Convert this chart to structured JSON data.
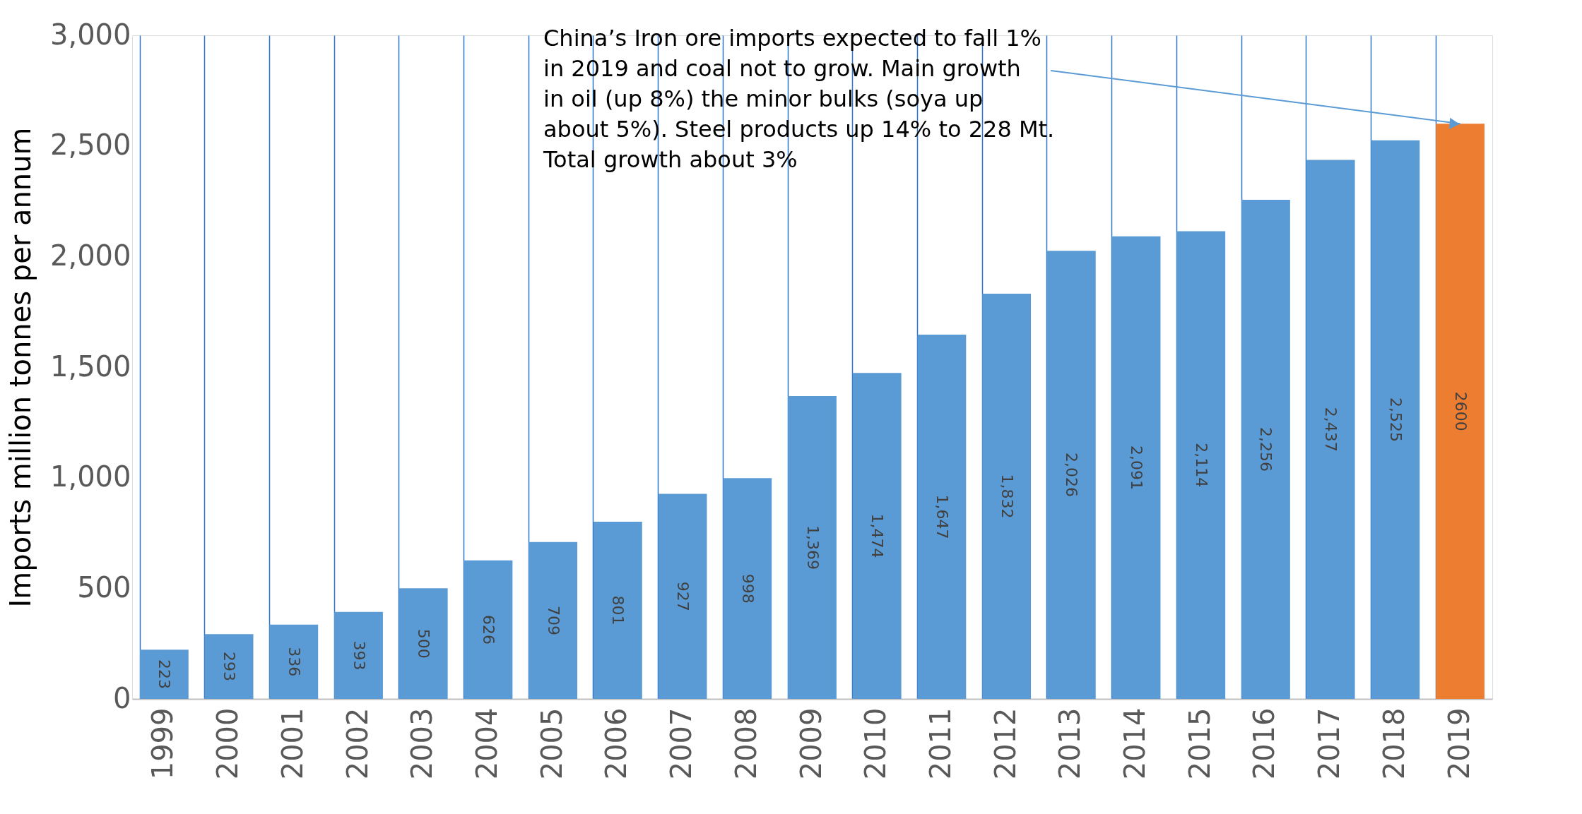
{
  "chart_data": {
    "type": "bar",
    "ylabel": "Imports million tonnes per annum",
    "categories": [
      "1999",
      "2000",
      "2001",
      "2002",
      "2003",
      "2004",
      "2005",
      "2006",
      "2007",
      "2008",
      "2009",
      "2010",
      "2011",
      "2012",
      "2013",
      "2014",
      "2015",
      "2016",
      "2017",
      "2018",
      "2019"
    ],
    "values": [
      223,
      293,
      336,
      393,
      500,
      626,
      709,
      801,
      927,
      998,
      1369,
      1474,
      1647,
      1832,
      2026,
      2091,
      2114,
      2256,
      2437,
      2525,
      2600
    ],
    "value_labels": [
      "223",
      "293",
      "336",
      "393",
      "500",
      "626",
      "709",
      "801",
      "927",
      "998",
      "1,369",
      "1,474",
      "1,647",
      "1,832",
      "2,026",
      "2,091",
      "2,114",
      "2,256",
      "2,437",
      "2,525",
      "2600"
    ],
    "colors": [
      "#5b9bd5",
      "#5b9bd5",
      "#5b9bd5",
      "#5b9bd5",
      "#5b9bd5",
      "#5b9bd5",
      "#5b9bd5",
      "#5b9bd5",
      "#5b9bd5",
      "#5b9bd5",
      "#5b9bd5",
      "#5b9bd5",
      "#5b9bd5",
      "#5b9bd5",
      "#5b9bd5",
      "#5b9bd5",
      "#5b9bd5",
      "#5b9bd5",
      "#5b9bd5",
      "#5b9bd5",
      "#ed7d31"
    ],
    "ylim": [
      0,
      3000
    ],
    "yticks": [
      {
        "value": 0,
        "label": "0"
      },
      {
        "value": 500,
        "label": "500"
      },
      {
        "value": 1000,
        "label": "1,000"
      },
      {
        "value": 1500,
        "label": "1,500"
      },
      {
        "value": 2000,
        "label": "2,000"
      },
      {
        "value": 2500,
        "label": "2,500"
      },
      {
        "value": 3000,
        "label": "3,000"
      }
    ],
    "grid": "x",
    "annotations": [
      {
        "text": "China’s Iron ore imports expected to fall 1% in 2019 and coal not to grow.  Main growth in oil (up 8%) the minor bulks (soya up about 5%). Steel products up 14% to 228 Mt.  Total growth about 3%",
        "x": "2019",
        "y": 2600
      }
    ]
  }
}
